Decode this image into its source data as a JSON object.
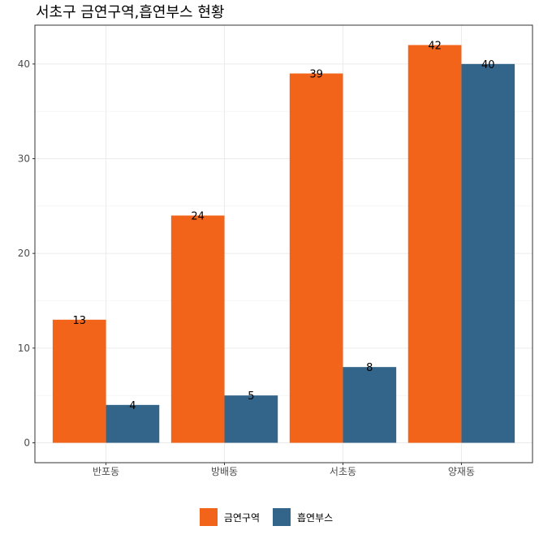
{
  "chart_data": {
    "type": "bar",
    "title": "서초구 금연구역,흡연부스 현황",
    "xlabel": "",
    "ylabel": "",
    "categories": [
      "반포동",
      "방배동",
      "서초동",
      "양재동"
    ],
    "series": [
      {
        "name": "금연구역",
        "color": "#F26419",
        "values": [
          13,
          24,
          39,
          42
        ]
      },
      {
        "name": "흡연부스",
        "color": "#33658A",
        "values": [
          4,
          5,
          8,
          40
        ]
      }
    ],
    "y_ticks": [
      0,
      10,
      20,
      30,
      40
    ],
    "ylim": [
      -2.1,
      44.1
    ],
    "grid": true,
    "legend_position": "bottom",
    "data_labels": true
  }
}
